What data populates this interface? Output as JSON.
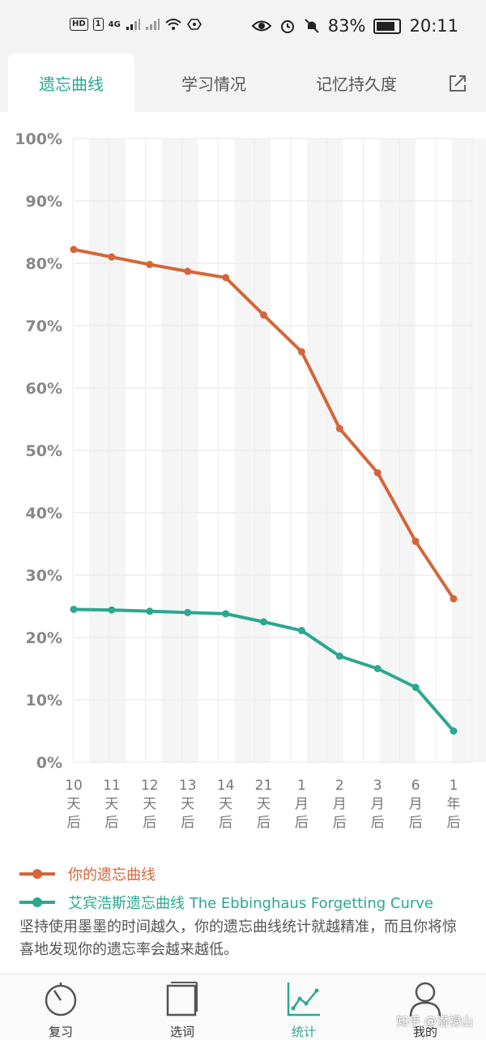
{
  "status_bar": {
    "badges": [
      "HD",
      "1"
    ],
    "network": "4G",
    "battery": "83%",
    "battery_level": 0.83,
    "time": "20:11"
  },
  "tabs": [
    {
      "label": "遗忘曲线",
      "active": true
    },
    {
      "label": "学习情况",
      "active": false
    },
    {
      "label": "记忆持久度",
      "active": false
    }
  ],
  "share_icon": "share-icon",
  "chart_data": {
    "type": "line",
    "y_ticks": [
      "100%",
      "90%",
      "80%",
      "70%",
      "60%",
      "50%",
      "40%",
      "30%",
      "20%",
      "10%",
      "0%"
    ],
    "ylim": [
      0,
      100
    ],
    "grid": true,
    "categories": [
      {
        "num": "10",
        "unit": "天",
        "suffix": "后"
      },
      {
        "num": "11",
        "unit": "天",
        "suffix": "后"
      },
      {
        "num": "12",
        "unit": "天",
        "suffix": "后"
      },
      {
        "num": "13",
        "unit": "天",
        "suffix": "后"
      },
      {
        "num": "14",
        "unit": "天",
        "suffix": "后"
      },
      {
        "num": "21",
        "unit": "天",
        "suffix": "后"
      },
      {
        "num": "1",
        "unit": "月",
        "suffix": "后"
      },
      {
        "num": "2",
        "unit": "月",
        "suffix": "后"
      },
      {
        "num": "3",
        "unit": "月",
        "suffix": "后"
      },
      {
        "num": "6",
        "unit": "月",
        "suffix": "后"
      },
      {
        "num": "1",
        "unit": "年",
        "suffix": "后"
      }
    ],
    "series": [
      {
        "name": "你的遗忘曲线",
        "color": "#d4663a",
        "values": [
          82.2,
          81.0,
          79.8,
          78.7,
          77.7,
          71.7,
          65.8,
          53.5,
          46.4,
          35.4,
          26.2
        ]
      },
      {
        "name": "艾宾浩斯遗忘曲线 The Ebbinghaus Forgetting Curve",
        "color": "#2aa890",
        "values": [
          24.5,
          24.4,
          24.2,
          24.0,
          23.8,
          22.5,
          21.1,
          17.0,
          15.0,
          12.0,
          5.0
        ]
      }
    ]
  },
  "note": "坚持使用墨墨的时间越久，你的遗忘曲线统计就越精准，而且你将惊喜地发现你的遗忘率会越来越低。",
  "bottom_nav": [
    {
      "label": "复习",
      "icon": "stopwatch-icon",
      "active": false
    },
    {
      "label": "选词",
      "icon": "book-icon",
      "active": false
    },
    {
      "label": "统计",
      "icon": "line-chart-icon",
      "active": true
    },
    {
      "label": "我的",
      "icon": "user-icon",
      "active": false
    }
  ],
  "watermark": "知乎 @潜禄山",
  "colors": {
    "accent": "#2aa890",
    "user_curve": "#d4663a"
  }
}
